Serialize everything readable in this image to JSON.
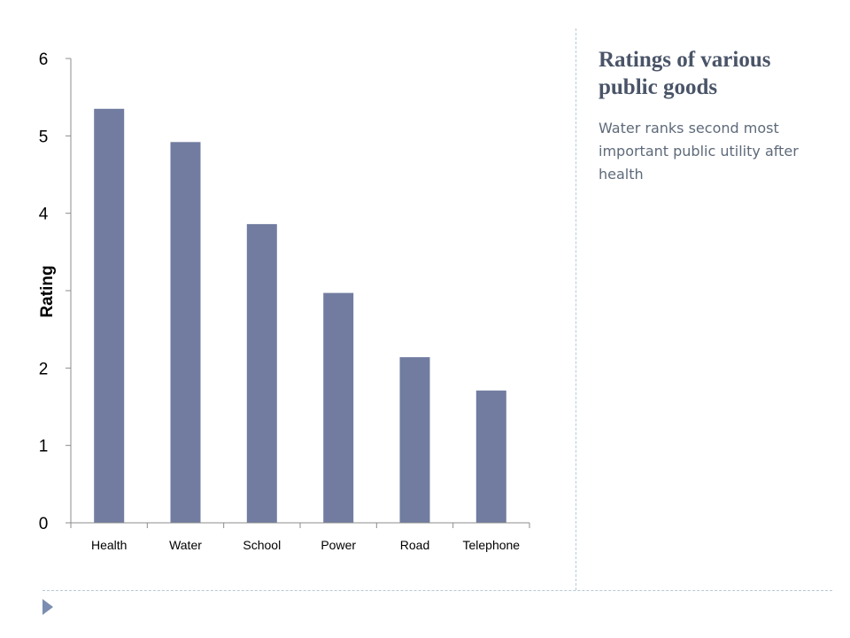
{
  "slide": {
    "title": "Ratings of various public goods",
    "body": "Water ranks second most important public utility after health"
  },
  "chart_data": {
    "type": "bar",
    "categories": [
      "Health",
      "Water",
      "School",
      "Power",
      "Road",
      "Telephone"
    ],
    "values": [
      5.35,
      4.92,
      3.86,
      2.97,
      2.14,
      1.71
    ],
    "ylabel": "Rating",
    "ylim": [
      0,
      6
    ],
    "yticks": [
      0,
      1,
      2,
      4,
      5,
      6
    ],
    "grid": false,
    "bar_color": "#717ca0",
    "axis_color": "#8c8c8c"
  }
}
